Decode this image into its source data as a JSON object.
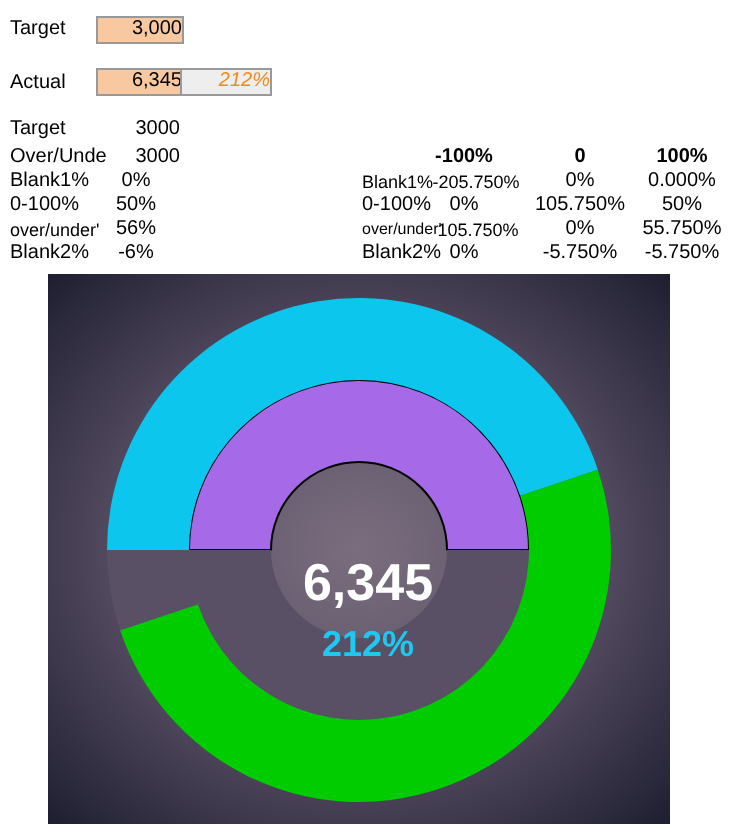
{
  "chart_data": {
    "type": "donut",
    "categories": [
      null,
      null,
      null
    ],
    "legend": false,
    "series": [
      {
        "colors": [
          "#0cc6ee",
          "#00cc00",
          "#5a5066"
        ],
        "values": [
          44.84,
          50.0,
          5.16
        ]
      },
      {
        "colors": [
          "#a66ae8",
          "#5a5066",
          "#5a5066"
        ],
        "values": [
          50,
          50,
          0
        ]
      }
    ],
    "annotations": [
      "6,345",
      "212%",
      "Target",
      "3,000",
      "Actual",
      "6,345",
      "212%",
      "Target",
      "3000",
      "Over/Unde",
      "3000",
      "Blank1%",
      "0%",
      "0-100%",
      "50%",
      "over/under'",
      "56%",
      "Blank2%",
      "-6%",
      "-100%",
      "0",
      "100%",
      "Blank1%",
      "-205.750%",
      "0%",
      "0.000%",
      "0-100%",
      "0%",
      "105.750%",
      "50%",
      "over/under'",
      "105.750%",
      "0%",
      "55.750%",
      "Blank2%",
      "0%",
      "-5.750%",
      "-5.750%"
    ]
  }
}
